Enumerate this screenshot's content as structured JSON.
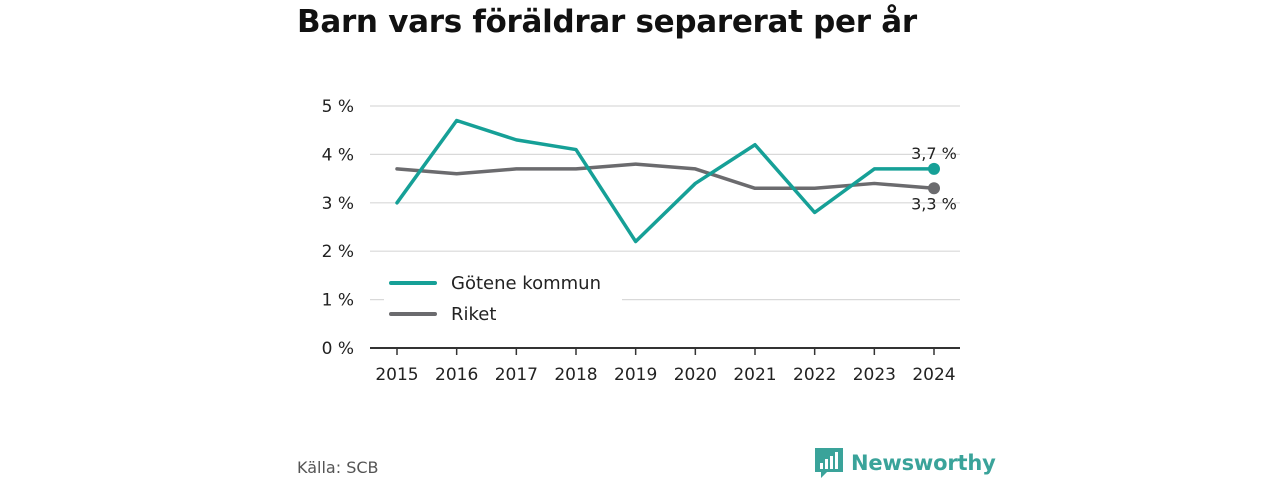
{
  "header": {
    "title": "Barn vars föräldrar separerat per år"
  },
  "footer": {
    "source": "Källa: SCB",
    "brand": "Newsworthy"
  },
  "colors": {
    "gotene": "#16a097",
    "riket": "#6b6b6e",
    "grid": "#d9d9d9",
    "axis": "#333333",
    "brand": "#3aa39a"
  },
  "chart_data": {
    "type": "line",
    "title": "Barn vars föräldrar separerat per år",
    "x": [
      "2015",
      "2016",
      "2017",
      "2018",
      "2019",
      "2020",
      "2021",
      "2022",
      "2023",
      "2024"
    ],
    "series": [
      {
        "name": "Götene kommun",
        "color": "#16a097",
        "values": [
          3.0,
          4.7,
          4.3,
          4.1,
          2.2,
          3.4,
          4.2,
          2.8,
          3.7,
          3.7
        ],
        "end_label": "3,7 %"
      },
      {
        "name": "Riket",
        "color": "#6b6b6e",
        "values": [
          3.7,
          3.6,
          3.7,
          3.7,
          3.8,
          3.7,
          3.3,
          3.3,
          3.4,
          3.3
        ],
        "end_label": "3,3 %"
      }
    ],
    "ylim": [
      0,
      5
    ],
    "yticks": [
      0,
      1,
      2,
      3,
      4,
      5
    ],
    "ytick_labels": [
      "0 %",
      "1 %",
      "2 %",
      "3 %",
      "4 %",
      "5 %"
    ],
    "grid": true,
    "legend": "bottom-left"
  }
}
